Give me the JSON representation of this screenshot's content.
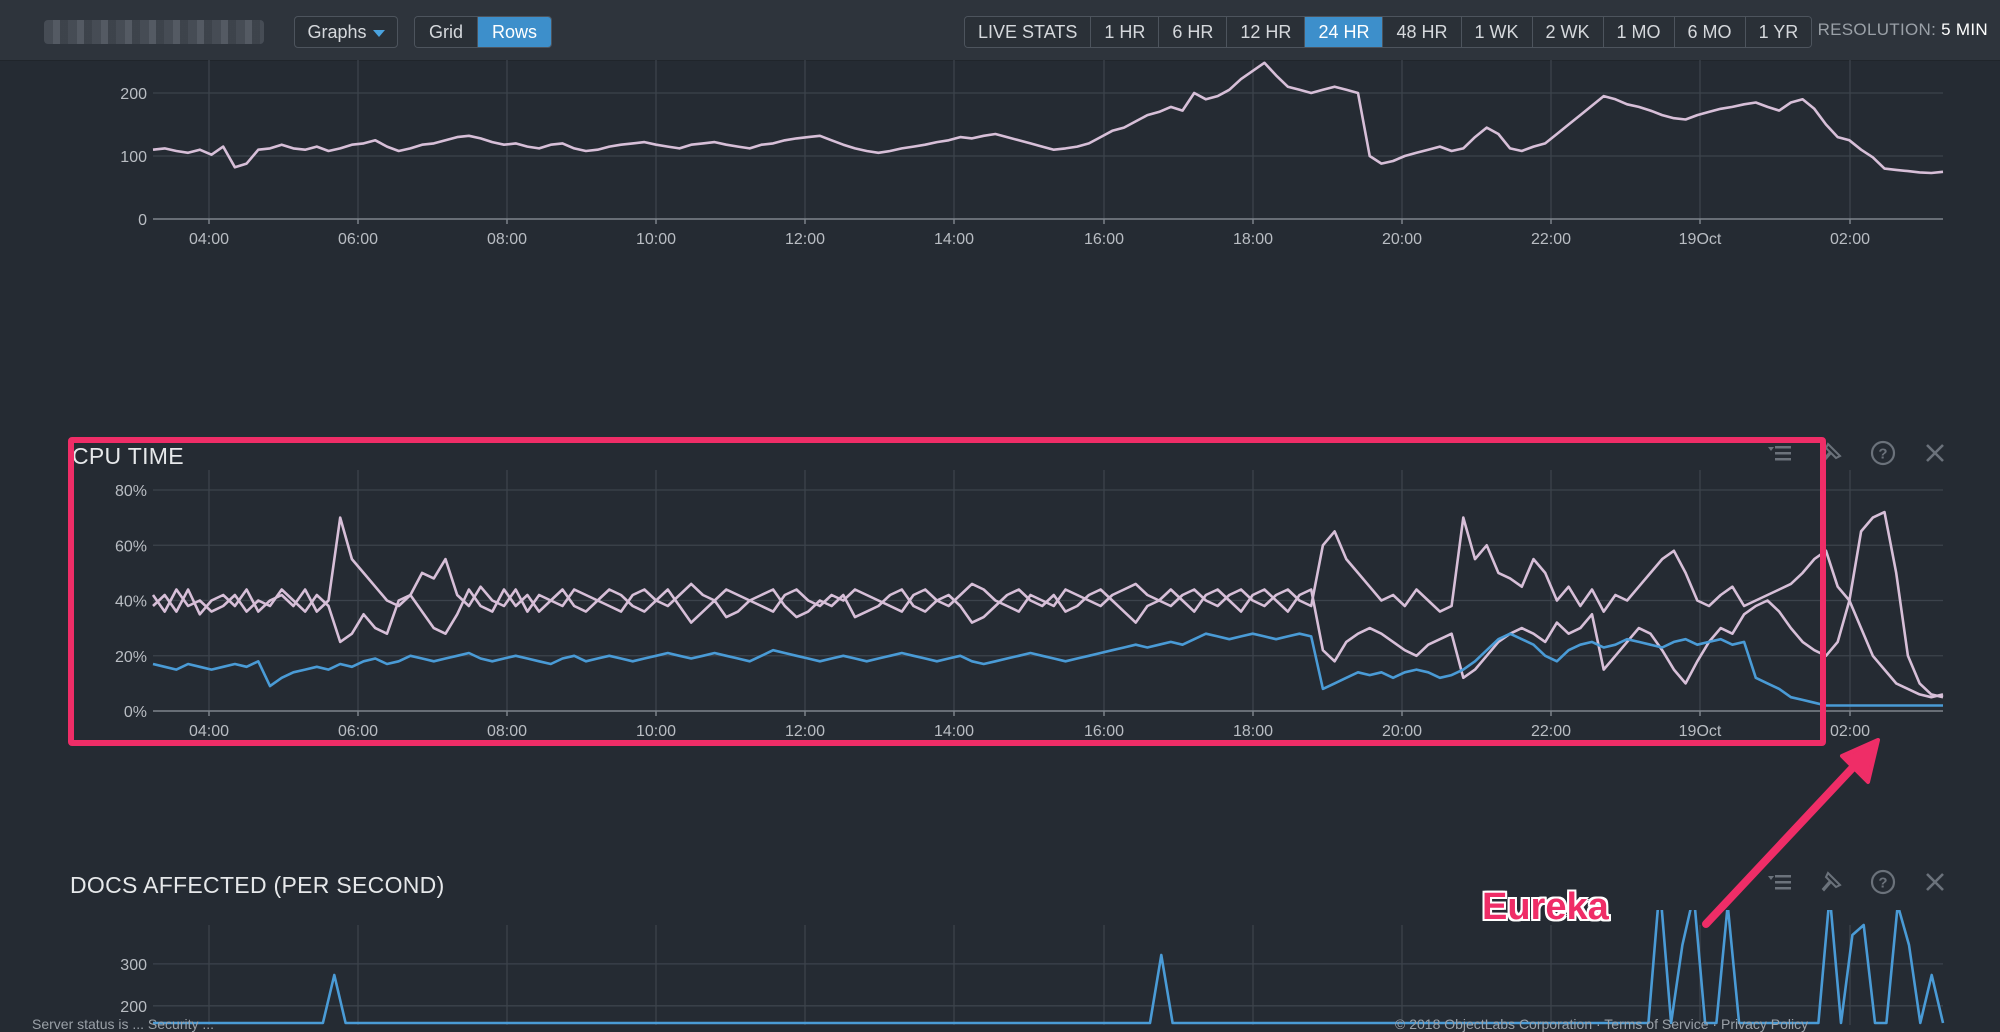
{
  "toolbar": {
    "graphs_label": "Graphs",
    "view_modes": [
      {
        "label": "Grid",
        "active": false
      },
      {
        "label": "Rows",
        "active": true
      }
    ],
    "ranges": [
      {
        "label": "LIVE STATS",
        "active": false
      },
      {
        "label": "1 HR",
        "active": false
      },
      {
        "label": "6 HR",
        "active": false
      },
      {
        "label": "12 HR",
        "active": false
      },
      {
        "label": "24 HR",
        "active": true
      },
      {
        "label": "48 HR",
        "active": false
      },
      {
        "label": "1 WK",
        "active": false
      },
      {
        "label": "2 WK",
        "active": false
      },
      {
        "label": "1 MO",
        "active": false
      },
      {
        "label": "6 MO",
        "active": false
      },
      {
        "label": "1 YR",
        "active": false
      }
    ],
    "resolution_label": "RESOLUTION:",
    "resolution_value": "5 MIN"
  },
  "colors": {
    "accent": "#3d8fcb",
    "series_pink": "#d7bfd8",
    "series_blue": "#4a9bd6",
    "annotation": "#ef2d67"
  },
  "x_ticks": [
    "04:00",
    "06:00",
    "08:00",
    "10:00",
    "12:00",
    "14:00",
    "16:00",
    "18:00",
    "20:00",
    "22:00",
    "19Oct",
    "02:00"
  ],
  "panel1": {
    "title": "",
    "chart_data": {
      "type": "line",
      "y_ticks": [
        "200",
        "100",
        "0"
      ],
      "ylim": [
        0,
        250
      ],
      "series": [
        {
          "values": [
            110,
            112,
            108,
            105,
            110,
            102,
            115,
            82,
            88,
            110,
            112,
            118,
            112,
            110,
            115,
            108,
            112,
            118,
            120,
            125,
            115,
            108,
            112,
            118,
            120,
            125,
            130,
            132,
            128,
            122,
            118,
            120,
            115,
            112,
            118,
            120,
            112,
            108,
            110,
            115,
            118,
            120,
            122,
            118,
            115,
            112,
            118,
            120,
            122,
            118,
            115,
            112,
            118,
            120,
            125,
            128,
            130,
            132,
            125,
            118,
            112,
            108,
            105,
            108,
            112,
            115,
            118,
            122,
            125,
            130,
            128,
            132,
            135,
            130,
            125,
            120,
            115,
            110,
            112,
            115,
            120,
            130,
            140,
            145,
            155,
            165,
            170,
            178,
            172,
            200,
            190,
            195,
            205,
            222,
            235,
            248,
            228,
            210,
            205,
            200,
            205,
            210,
            205,
            200,
            100,
            88,
            92,
            100,
            105,
            110,
            115,
            108,
            112,
            130,
            145,
            135,
            112,
            108,
            115,
            120,
            135,
            150,
            165,
            180,
            195,
            190,
            182,
            178,
            172,
            165,
            160,
            158,
            165,
            170,
            175,
            178,
            182,
            185,
            178,
            172,
            185,
            190,
            175,
            150,
            130,
            125,
            110,
            98,
            80,
            78,
            76,
            74,
            73,
            75
          ]
        }
      ]
    }
  },
  "panel2": {
    "title": "CPU TIME",
    "chart_data": {
      "type": "line",
      "y_ticks": [
        "80%",
        "60%",
        "40%",
        "20%",
        "0%"
      ],
      "ylim": [
        0,
        80
      ],
      "series": [
        {
          "values": [
            38,
            42,
            36,
            44,
            35,
            40,
            42,
            38,
            44,
            36,
            40,
            42,
            38,
            44,
            36,
            40,
            70,
            55,
            50,
            45,
            40,
            38,
            42,
            50,
            48,
            55,
            42,
            38,
            45,
            40,
            38,
            44,
            36,
            42,
            40,
            38,
            44,
            42,
            40,
            38,
            36,
            42,
            44,
            40,
            38,
            42,
            46,
            42,
            40,
            44,
            42,
            40,
            38,
            36,
            42,
            44,
            40,
            38,
            42,
            40,
            44,
            42,
            40,
            38,
            36,
            42,
            44,
            40,
            38,
            42,
            46,
            44,
            40,
            38,
            36,
            42,
            40,
            38,
            44,
            42,
            40,
            38,
            42,
            44,
            46,
            42,
            40,
            38,
            42,
            44,
            40,
            38,
            42,
            44,
            40,
            38,
            42,
            44,
            40,
            38,
            60,
            65,
            55,
            50,
            45,
            40,
            42,
            38,
            44,
            40,
            36,
            38,
            70,
            55,
            60,
            50,
            48,
            45,
            55,
            50,
            40,
            45,
            38,
            44,
            36,
            42,
            40,
            45,
            50,
            55,
            58,
            50,
            40,
            38,
            42,
            45,
            38,
            40,
            42,
            44,
            46,
            50,
            55,
            58,
            45,
            40,
            30,
            20,
            15,
            10,
            8,
            6,
            5,
            6
          ]
        },
        {
          "values": [
            42,
            36,
            44,
            38,
            40,
            36,
            38,
            42,
            36,
            40,
            38,
            44,
            40,
            36,
            42,
            38,
            25,
            28,
            35,
            30,
            28,
            40,
            42,
            36,
            30,
            28,
            35,
            44,
            38,
            36,
            44,
            38,
            42,
            36,
            40,
            44,
            38,
            36,
            40,
            44,
            42,
            38,
            36,
            40,
            44,
            38,
            32,
            36,
            40,
            34,
            36,
            40,
            42,
            44,
            38,
            34,
            36,
            40,
            38,
            42,
            34,
            36,
            38,
            42,
            44,
            38,
            36,
            40,
            42,
            38,
            32,
            34,
            38,
            42,
            44,
            40,
            38,
            42,
            36,
            38,
            42,
            44,
            40,
            36,
            32,
            38,
            40,
            44,
            40,
            36,
            42,
            44,
            40,
            36,
            42,
            44,
            40,
            36,
            42,
            44,
            22,
            18,
            25,
            28,
            30,
            28,
            25,
            22,
            20,
            24,
            26,
            28,
            12,
            15,
            20,
            25,
            28,
            30,
            28,
            25,
            32,
            28,
            30,
            35,
            15,
            20,
            25,
            30,
            28,
            22,
            15,
            10,
            18,
            25,
            30,
            28,
            35,
            38,
            40,
            36,
            30,
            25,
            22,
            20,
            25,
            40,
            65,
            70,
            72,
            50,
            20,
            10,
            6,
            5
          ]
        },
        {
          "values": [
            17,
            16,
            15,
            17,
            16,
            15,
            16,
            17,
            16,
            18,
            9,
            12,
            14,
            15,
            16,
            15,
            17,
            16,
            18,
            19,
            17,
            18,
            20,
            19,
            18,
            19,
            20,
            21,
            19,
            18,
            19,
            20,
            19,
            18,
            17,
            19,
            20,
            18,
            19,
            20,
            19,
            18,
            19,
            20,
            21,
            20,
            19,
            20,
            21,
            20,
            19,
            18,
            20,
            22,
            21,
            20,
            19,
            18,
            19,
            20,
            19,
            18,
            19,
            20,
            21,
            20,
            19,
            18,
            19,
            20,
            18,
            17,
            18,
            19,
            20,
            21,
            20,
            19,
            18,
            19,
            20,
            21,
            22,
            23,
            24,
            23,
            24,
            25,
            24,
            26,
            28,
            27,
            26,
            27,
            28,
            27,
            26,
            27,
            28,
            27,
            8,
            10,
            12,
            14,
            13,
            14,
            12,
            14,
            15,
            14,
            12,
            13,
            15,
            18,
            22,
            26,
            28,
            26,
            24,
            20,
            18,
            22,
            24,
            25,
            23,
            24,
            26,
            25,
            24,
            23,
            25,
            26,
            24,
            25,
            26,
            24,
            25,
            12,
            10,
            8,
            5,
            4,
            3,
            2,
            2,
            2,
            2,
            2,
            2,
            2,
            2,
            2,
            2,
            2
          ]
        }
      ]
    }
  },
  "panel3": {
    "title": "DOCS AFFECTED (PER SECOND)",
    "chart_data": {
      "type": "line",
      "y_ticks": [
        "300",
        "200"
      ],
      "ylim": [
        190,
        345
      ],
      "series": [
        {
          "values": [
            0,
            0,
            0,
            0,
            0,
            0,
            0,
            0,
            0,
            0,
            0,
            0,
            0,
            0,
            0,
            0,
            40,
            0,
            0,
            0,
            0,
            0,
            0,
            0,
            0,
            0,
            0,
            0,
            0,
            0,
            0,
            0,
            0,
            0,
            0,
            0,
            0,
            0,
            0,
            0,
            0,
            0,
            0,
            0,
            0,
            0,
            0,
            0,
            0,
            0,
            0,
            0,
            0,
            0,
            0,
            0,
            0,
            0,
            0,
            0,
            0,
            0,
            0,
            0,
            0,
            0,
            0,
            0,
            0,
            0,
            0,
            0,
            0,
            0,
            0,
            0,
            0,
            0,
            0,
            0,
            0,
            0,
            0,
            0,
            0,
            0,
            0,
            0,
            0,
            60,
            0,
            0,
            0,
            0,
            0,
            0,
            0,
            0,
            0,
            0,
            0,
            0,
            0,
            0,
            0,
            0,
            0,
            0,
            0,
            0,
            0,
            0,
            0,
            0,
            0,
            0,
            0,
            0,
            0,
            0,
            0,
            0,
            0,
            0,
            0,
            0,
            0,
            0,
            0,
            0,
            0,
            0,
            0,
            130,
            0,
            70,
            120,
            0,
            0,
            110,
            0,
            0,
            0,
            0,
            0,
            0,
            0,
            0,
            120,
            0,
            80,
            90,
            0,
            0,
            110,
            70,
            0,
            40,
            0
          ]
        }
      ]
    }
  },
  "annotation": {
    "text": "Eureka"
  },
  "footer": {
    "left": "Server status is ... Security ...",
    "right": "© 2018 ObjectLabs Corporation  ·  Terms of Service  ·  Privacy Policy"
  }
}
